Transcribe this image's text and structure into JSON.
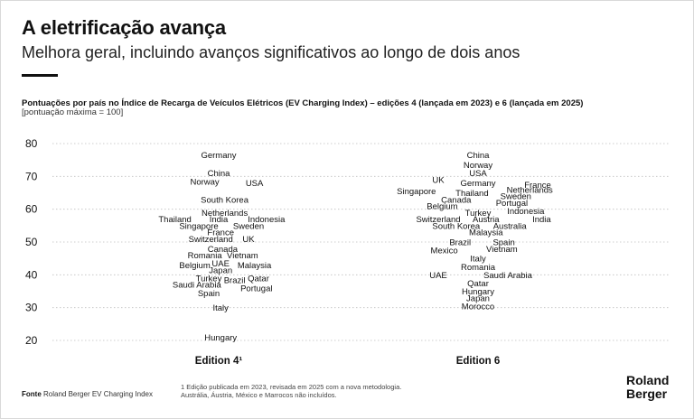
{
  "header": {
    "title": "A eletrificação avança",
    "subtitle": "Melhora geral, incluindo avanços significativos ao longo de dois anos"
  },
  "chart_data": {
    "type": "scatter",
    "title": "Pontuações por país no Índice de Recarga de Veículos Elétricos (EV Charging Index) – edições 4 (lançada em 2023) e 6 (lançada em 2025)",
    "subtitle": "[pontuação máxima = 100]",
    "ylim": [
      20,
      80
    ],
    "y_ticks": [
      20,
      30,
      40,
      50,
      60,
      70,
      80
    ],
    "grid": true,
    "categories": [
      "Edition 4¹",
      "Edition 6"
    ],
    "series": [
      {
        "category": "Edition 4¹",
        "points": [
          {
            "label": "Germany",
            "value": 76.5,
            "pos": 0.0
          },
          {
            "label": "China",
            "value": 71,
            "pos": 0.0
          },
          {
            "label": "Norway",
            "value": 68.5,
            "pos": -0.35
          },
          {
            "label": "USA",
            "value": 68,
            "pos": 0.9
          },
          {
            "label": "South Korea",
            "value": 63,
            "pos": 0.15
          },
          {
            "label": "Netherlands",
            "value": 59,
            "pos": 0.15
          },
          {
            "label": "Thailand",
            "value": 57,
            "pos": -1.1
          },
          {
            "label": "India",
            "value": 57,
            "pos": 0.0
          },
          {
            "label": "Indonesia",
            "value": 57,
            "pos": 1.2
          },
          {
            "label": "Singapore",
            "value": 55,
            "pos": -0.5
          },
          {
            "label": "Sweden",
            "value": 55,
            "pos": 0.75
          },
          {
            "label": "France",
            "value": 53,
            "pos": 0.05
          },
          {
            "label": "Switzerland",
            "value": 51,
            "pos": -0.2
          },
          {
            "label": "UK",
            "value": 51,
            "pos": 0.75
          },
          {
            "label": "Canada",
            "value": 48,
            "pos": 0.1
          },
          {
            "label": "Romania",
            "value": 46,
            "pos": -0.35
          },
          {
            "label": "Vietnam",
            "value": 46,
            "pos": 0.6
          },
          {
            "label": "Belgium",
            "value": 43,
            "pos": -0.6
          },
          {
            "label": "UAE",
            "value": 43.5,
            "pos": 0.05
          },
          {
            "label": "Malaysia",
            "value": 43,
            "pos": 0.9
          },
          {
            "label": "Japan",
            "value": 41.5,
            "pos": 0.05
          },
          {
            "label": "Turkey",
            "value": 39,
            "pos": -0.25
          },
          {
            "label": "Brazil",
            "value": 38.5,
            "pos": 0.4
          },
          {
            "label": "Qatar",
            "value": 39,
            "pos": 1.0
          },
          {
            "label": "Saudi Arabia",
            "value": 37,
            "pos": -0.55
          },
          {
            "label": "Portugal",
            "value": 36,
            "pos": 0.95
          },
          {
            "label": "Spain",
            "value": 34.5,
            "pos": -0.25
          },
          {
            "label": "Italy",
            "value": 30,
            "pos": 0.05
          },
          {
            "label": "Hungary",
            "value": 21,
            "pos": 0.05
          }
        ]
      },
      {
        "category": "Edition 6",
        "points": [
          {
            "label": "China",
            "value": 76.5,
            "pos": 0.0
          },
          {
            "label": "Norway",
            "value": 73.5,
            "pos": 0.0
          },
          {
            "label": "USA",
            "value": 71,
            "pos": 0.0
          },
          {
            "label": "UK",
            "value": 69,
            "pos": -1.0
          },
          {
            "label": "Germany",
            "value": 68,
            "pos": 0.0
          },
          {
            "label": "France",
            "value": 67.5,
            "pos": 1.5
          },
          {
            "label": "Singapore",
            "value": 65.5,
            "pos": -1.55
          },
          {
            "label": "Thailand",
            "value": 65,
            "pos": -0.15
          },
          {
            "label": "Netherlands",
            "value": 66,
            "pos": 1.3
          },
          {
            "label": "Sweden",
            "value": 64,
            "pos": 0.95
          },
          {
            "label": "Canada",
            "value": 63,
            "pos": -0.55
          },
          {
            "label": "Portugal",
            "value": 62,
            "pos": 0.85
          },
          {
            "label": "Belgium",
            "value": 61,
            "pos": -0.9
          },
          {
            "label": "Indonesia",
            "value": 59.5,
            "pos": 1.2
          },
          {
            "label": "Turkey",
            "value": 59,
            "pos": 0.0
          },
          {
            "label": "Switzerland",
            "value": 57,
            "pos": -1.0
          },
          {
            "label": "Austria",
            "value": 57,
            "pos": 0.2
          },
          {
            "label": "India",
            "value": 57,
            "pos": 1.6
          },
          {
            "label": "South Korea",
            "value": 55,
            "pos": -0.55
          },
          {
            "label": "Australia",
            "value": 55,
            "pos": 0.8
          },
          {
            "label": "Malaysia",
            "value": 53,
            "pos": 0.2
          },
          {
            "label": "Brazil",
            "value": 50,
            "pos": -0.45
          },
          {
            "label": "Spain",
            "value": 50,
            "pos": 0.65
          },
          {
            "label": "Vietnam",
            "value": 48,
            "pos": 0.6
          },
          {
            "label": "Mexico",
            "value": 47.5,
            "pos": -0.85
          },
          {
            "label": "Italy",
            "value": 45,
            "pos": 0.0
          },
          {
            "label": "Romania",
            "value": 42.5,
            "pos": 0.0
          },
          {
            "label": "UAE",
            "value": 40,
            "pos": -1.0
          },
          {
            "label": "Saudi Arabia",
            "value": 40,
            "pos": 0.75
          },
          {
            "label": "Qatar",
            "value": 37.5,
            "pos": 0.0
          },
          {
            "label": "Hungary",
            "value": 35,
            "pos": 0.0
          },
          {
            "label": "Japan",
            "value": 33,
            "pos": 0.0
          },
          {
            "label": "Morocco",
            "value": 30.5,
            "pos": 0.0
          }
        ]
      }
    ]
  },
  "footer": {
    "source_label": "Fonte",
    "source_text": "Roland Berger EV Charging Index",
    "footnote_line1": "1 Edição publicada em 2023, revisada em 2025 com a nova metodologia.",
    "footnote_line2": "Austrália, Áustria, México e Marrocos não incluídos.",
    "logo_line1": "Roland",
    "logo_line2": "Berger"
  },
  "colors": {
    "text": "#111111",
    "grid": "#bfbfbf",
    "axis_label": "#333333"
  }
}
